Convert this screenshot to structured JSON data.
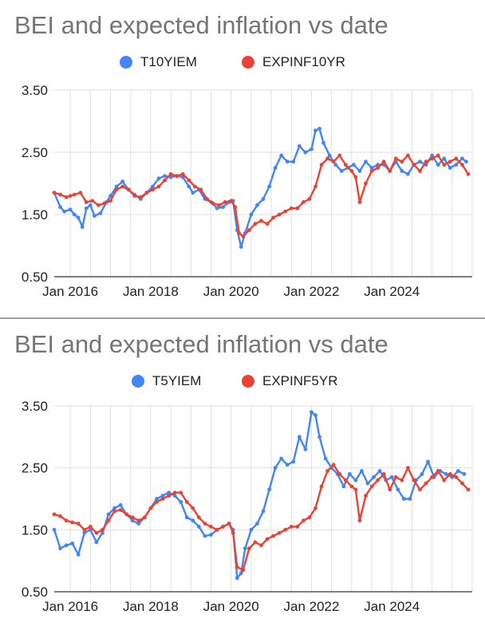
{
  "chart_data": [
    {
      "type": "line",
      "title": "BEI and expected inflation vs date",
      "xlabel": "",
      "ylabel": "",
      "xlim": [
        2015.6,
        2026.0
      ],
      "ylim": [
        0.5,
        3.5
      ],
      "yticks": [
        "0.50",
        "1.50",
        "2.50",
        "3.50"
      ],
      "xticks": [
        {
          "label": "Jan 2016",
          "x": 2016
        },
        {
          "label": "Jan 2018",
          "x": 2018
        },
        {
          "label": "Jan 2020",
          "x": 2020
        },
        {
          "label": "Jan 2022",
          "x": 2022
        },
        {
          "label": "Jan 2024",
          "x": 2024
        }
      ],
      "grid": true,
      "legend_position": "top-center",
      "series": [
        {
          "name": "T10YIEM",
          "color": "#4285f4",
          "x": [
            2015.6,
            2015.75,
            2015.85,
            2016.0,
            2016.1,
            2016.2,
            2016.3,
            2016.4,
            2016.5,
            2016.6,
            2016.75,
            2016.9,
            2017.0,
            2017.15,
            2017.3,
            2017.45,
            2017.6,
            2017.75,
            2017.9,
            2018.05,
            2018.2,
            2018.35,
            2018.5,
            2018.65,
            2018.8,
            2018.95,
            2019.05,
            2019.2,
            2019.35,
            2019.5,
            2019.65,
            2019.8,
            2019.95,
            2020.05,
            2020.15,
            2020.25,
            2020.35,
            2020.5,
            2020.65,
            2020.8,
            2020.95,
            2021.1,
            2021.25,
            2021.4,
            2021.55,
            2021.7,
            2021.85,
            2022.0,
            2022.1,
            2022.2,
            2022.3,
            2022.45,
            2022.6,
            2022.75,
            2022.9,
            2023.05,
            2023.2,
            2023.35,
            2023.5,
            2023.65,
            2023.8,
            2023.95,
            2024.1,
            2024.25,
            2024.4,
            2024.55,
            2024.7,
            2024.85,
            2025.0,
            2025.15,
            2025.3,
            2025.45,
            2025.6,
            2025.75,
            2025.85
          ],
          "values": [
            1.85,
            1.62,
            1.55,
            1.58,
            1.5,
            1.45,
            1.3,
            1.6,
            1.65,
            1.48,
            1.52,
            1.7,
            1.8,
            1.95,
            2.03,
            1.9,
            1.82,
            1.75,
            1.85,
            1.95,
            2.08,
            2.12,
            2.1,
            2.12,
            2.1,
            1.95,
            1.85,
            1.9,
            1.75,
            1.7,
            1.6,
            1.62,
            1.7,
            1.72,
            1.25,
            0.98,
            1.2,
            1.5,
            1.65,
            1.75,
            1.95,
            2.25,
            2.45,
            2.35,
            2.35,
            2.6,
            2.5,
            2.55,
            2.85,
            2.88,
            2.65,
            2.45,
            2.3,
            2.2,
            2.25,
            2.3,
            2.2,
            2.35,
            2.25,
            2.3,
            2.3,
            2.2,
            2.35,
            2.2,
            2.15,
            2.3,
            2.35,
            2.3,
            2.45,
            2.3,
            2.4,
            2.25,
            2.3,
            2.4,
            2.35
          ]
        },
        {
          "name": "EXPINF10YR",
          "color": "#ea4335",
          "x": [
            2015.6,
            2015.75,
            2015.9,
            2016.0,
            2016.1,
            2016.25,
            2016.4,
            2016.55,
            2016.7,
            2016.85,
            2017.0,
            2017.15,
            2017.3,
            2017.45,
            2017.6,
            2017.75,
            2017.9,
            2018.05,
            2018.2,
            2018.35,
            2018.5,
            2018.65,
            2018.8,
            2018.95,
            2019.1,
            2019.25,
            2019.4,
            2019.55,
            2019.7,
            2019.85,
            2020.0,
            2020.1,
            2020.2,
            2020.3,
            2020.45,
            2020.6,
            2020.75,
            2020.9,
            2021.05,
            2021.2,
            2021.35,
            2021.5,
            2021.65,
            2021.8,
            2021.95,
            2022.1,
            2022.25,
            2022.4,
            2022.55,
            2022.7,
            2022.85,
            2023.0,
            2023.1,
            2023.2,
            2023.35,
            2023.5,
            2023.65,
            2023.8,
            2023.95,
            2024.1,
            2024.25,
            2024.4,
            2024.55,
            2024.7,
            2024.85,
            2025.0,
            2025.15,
            2025.3,
            2025.45,
            2025.6,
            2025.75,
            2025.9
          ],
          "values": [
            1.85,
            1.82,
            1.78,
            1.8,
            1.82,
            1.85,
            1.7,
            1.72,
            1.65,
            1.68,
            1.72,
            1.9,
            1.95,
            1.9,
            1.8,
            1.78,
            1.85,
            1.9,
            1.95,
            2.05,
            2.15,
            2.12,
            2.15,
            2.05,
            1.95,
            1.9,
            1.75,
            1.68,
            1.65,
            1.7,
            1.72,
            1.62,
            1.2,
            1.15,
            1.25,
            1.35,
            1.4,
            1.35,
            1.45,
            1.5,
            1.55,
            1.6,
            1.6,
            1.7,
            1.75,
            1.95,
            2.3,
            2.4,
            2.35,
            2.45,
            2.3,
            2.2,
            2.1,
            1.7,
            2.0,
            2.2,
            2.25,
            2.35,
            2.2,
            2.4,
            2.35,
            2.45,
            2.3,
            2.2,
            2.35,
            2.4,
            2.45,
            2.3,
            2.35,
            2.4,
            2.3,
            2.15
          ]
        }
      ]
    },
    {
      "type": "line",
      "title": "BEI and expected inflation vs date",
      "xlabel": "",
      "ylabel": "",
      "xlim": [
        2015.6,
        2026.0
      ],
      "ylim": [
        0.5,
        3.5
      ],
      "yticks": [
        "0.50",
        "1.50",
        "2.50",
        "3.50"
      ],
      "xticks": [
        {
          "label": "Jan 2016",
          "x": 2016
        },
        {
          "label": "Jan 2018",
          "x": 2018
        },
        {
          "label": "Jan 2020",
          "x": 2020
        },
        {
          "label": "Jan 2022",
          "x": 2022
        },
        {
          "label": "Jan 2024",
          "x": 2024
        }
      ],
      "grid": true,
      "legend_position": "top-center",
      "series": [
        {
          "name": "T5YIEM",
          "color": "#4285f4",
          "x": [
            2015.6,
            2015.75,
            2015.9,
            2016.05,
            2016.2,
            2016.35,
            2016.5,
            2016.65,
            2016.8,
            2016.95,
            2017.1,
            2017.25,
            2017.4,
            2017.55,
            2017.7,
            2017.85,
            2018.0,
            2018.15,
            2018.3,
            2018.45,
            2018.6,
            2018.75,
            2018.9,
            2019.05,
            2019.2,
            2019.35,
            2019.5,
            2019.65,
            2019.8,
            2019.95,
            2020.05,
            2020.15,
            2020.25,
            2020.35,
            2020.5,
            2020.65,
            2020.8,
            2020.95,
            2021.1,
            2021.25,
            2021.4,
            2021.55,
            2021.7,
            2021.85,
            2022.0,
            2022.1,
            2022.2,
            2022.35,
            2022.5,
            2022.65,
            2022.8,
            2022.95,
            2023.1,
            2023.25,
            2023.4,
            2023.55,
            2023.7,
            2023.85,
            2024.0,
            2024.15,
            2024.3,
            2024.45,
            2024.6,
            2024.75,
            2024.9,
            2025.05,
            2025.2,
            2025.35,
            2025.5,
            2025.65,
            2025.8
          ],
          "values": [
            1.5,
            1.2,
            1.25,
            1.28,
            1.1,
            1.45,
            1.5,
            1.3,
            1.45,
            1.75,
            1.85,
            1.9,
            1.75,
            1.65,
            1.6,
            1.7,
            1.85,
            2.0,
            2.05,
            2.1,
            2.05,
            1.95,
            1.7,
            1.65,
            1.55,
            1.4,
            1.42,
            1.5,
            1.55,
            1.6,
            1.5,
            0.72,
            0.8,
            1.2,
            1.5,
            1.6,
            1.8,
            2.15,
            2.5,
            2.65,
            2.55,
            2.6,
            3.0,
            2.8,
            3.4,
            3.35,
            3.0,
            2.65,
            2.5,
            2.4,
            2.2,
            2.4,
            2.3,
            2.45,
            2.25,
            2.35,
            2.45,
            2.3,
            2.35,
            2.15,
            2.0,
            2.0,
            2.3,
            2.4,
            2.6,
            2.35,
            2.45,
            2.4,
            2.35,
            2.45,
            2.4
          ]
        },
        {
          "name": "EXPINF5YR",
          "color": "#ea4335",
          "x": [
            2015.6,
            2015.75,
            2015.9,
            2016.05,
            2016.2,
            2016.35,
            2016.5,
            2016.65,
            2016.8,
            2016.95,
            2017.1,
            2017.25,
            2017.4,
            2017.55,
            2017.7,
            2017.85,
            2018.0,
            2018.15,
            2018.3,
            2018.45,
            2018.6,
            2018.75,
            2018.9,
            2019.05,
            2019.2,
            2019.35,
            2019.5,
            2019.65,
            2019.8,
            2019.95,
            2020.05,
            2020.15,
            2020.3,
            2020.45,
            2020.6,
            2020.75,
            2020.9,
            2021.05,
            2021.2,
            2021.35,
            2021.5,
            2021.65,
            2021.8,
            2021.95,
            2022.1,
            2022.25,
            2022.4,
            2022.55,
            2022.7,
            2022.85,
            2023.0,
            2023.1,
            2023.2,
            2023.35,
            2023.5,
            2023.65,
            2023.8,
            2023.95,
            2024.1,
            2024.25,
            2024.4,
            2024.55,
            2024.7,
            2024.85,
            2025.0,
            2025.15,
            2025.3,
            2025.45,
            2025.6,
            2025.75,
            2025.9
          ],
          "values": [
            1.75,
            1.72,
            1.65,
            1.62,
            1.6,
            1.5,
            1.55,
            1.45,
            1.5,
            1.65,
            1.8,
            1.82,
            1.75,
            1.7,
            1.65,
            1.7,
            1.85,
            1.95,
            2.0,
            2.05,
            2.1,
            2.1,
            1.95,
            1.85,
            1.7,
            1.6,
            1.55,
            1.5,
            1.55,
            1.6,
            1.45,
            0.9,
            0.85,
            1.2,
            1.3,
            1.25,
            1.35,
            1.4,
            1.45,
            1.5,
            1.55,
            1.55,
            1.65,
            1.7,
            1.85,
            2.2,
            2.45,
            2.55,
            2.4,
            2.3,
            2.2,
            2.15,
            1.65,
            2.05,
            2.2,
            2.3,
            2.4,
            2.15,
            2.35,
            2.3,
            2.5,
            2.3,
            2.15,
            2.25,
            2.35,
            2.45,
            2.3,
            2.4,
            2.35,
            2.25,
            2.15
          ]
        }
      ]
    }
  ],
  "colors": {
    "title_text": "#757575",
    "grid": "#e0e0e0",
    "axis_line": "#333333",
    "tick_text": "#222222"
  }
}
